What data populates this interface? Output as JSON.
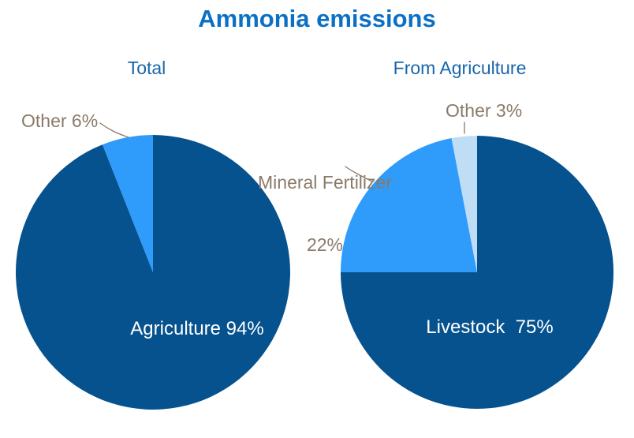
{
  "title": "Ammonia emissions",
  "palette": {
    "title_blue": "#0a70c6",
    "subtitle_blue": "#1866ac",
    "slice_dark_blue": "#06528e",
    "slice_bright_blue": "#2f9bfa",
    "slice_pale_blue": "#c0ddf6",
    "outside_label_brown": "#8a7a69",
    "inside_label_white": "#ffffff",
    "background": "#ffffff"
  },
  "chart_data": [
    {
      "type": "pie",
      "title": "Total",
      "start_angle_deg": 0,
      "direction": "clockwise",
      "legend": "none",
      "slices": [
        {
          "label": "Agriculture",
          "value": 94,
          "unit": "%",
          "color": "#06528e",
          "label_text": "Agriculture 94%",
          "label_placement": "inside"
        },
        {
          "label": "Other",
          "value": 6,
          "unit": "%",
          "color": "#2f9bfa",
          "label_text": "Other 6%",
          "label_placement": "outside"
        }
      ]
    },
    {
      "type": "pie",
      "title": "From Agriculture",
      "start_angle_deg": 0,
      "direction": "clockwise",
      "legend": "none",
      "slices": [
        {
          "label": "Livestock",
          "value": 75,
          "unit": "%",
          "color": "#06528e",
          "label_text": "Livestock  75%",
          "label_placement": "inside"
        },
        {
          "label": "Mineral Fertilizer",
          "value": 22,
          "unit": "%",
          "color": "#2f9bfa",
          "label_text": "Mineral Fertilizer 22%",
          "label_lines": [
            "Mineral Fertilizer",
            "22%"
          ],
          "label_placement": "outside"
        },
        {
          "label": "Other",
          "value": 3,
          "unit": "%",
          "color": "#c0ddf6",
          "label_text": "Other 3%",
          "label_placement": "outside"
        }
      ]
    }
  ]
}
